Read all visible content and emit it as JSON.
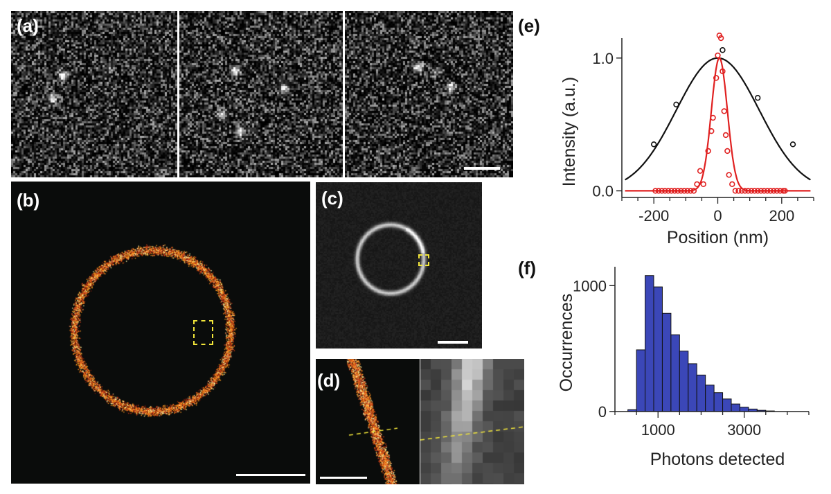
{
  "panels": {
    "a": {
      "label": "(a)",
      "frames": 3
    },
    "b": {
      "label": "(b)"
    },
    "c": {
      "label": "(c)"
    },
    "d": {
      "label": "(d)"
    },
    "e": {
      "label": "(e)"
    },
    "f": {
      "label": "(f)"
    }
  },
  "colors": {
    "black_fit": "#111111",
    "red_fit": "#e02020",
    "histogram_fill": "#3b47b8",
    "roi_box": "#f2e63a",
    "hot_ring": "#ff7a1a"
  },
  "chart_data": [
    {
      "id": "e",
      "type": "scatter",
      "xlabel": "Position (nm)",
      "ylabel": "Intensity (a.u.)",
      "xlim": [
        -300,
        300
      ],
      "ylim": [
        -0.05,
        1.15
      ],
      "xticks": [
        -200,
        0,
        200
      ],
      "xtick_labels": [
        "-200",
        "0",
        "200"
      ],
      "yticks": [
        0.0,
        1.0
      ],
      "ytick_labels": [
        "0.0",
        "1.0"
      ],
      "series": [
        {
          "color": "#111111",
          "points": [
            [
              -200,
              0.35
            ],
            [
              -130,
              0.65
            ],
            [
              15,
              1.06
            ],
            [
              125,
              0.7
            ],
            [
              235,
              0.35
            ]
          ],
          "fit": {
            "kind": "gaussian",
            "center": 0,
            "sigma": 130,
            "amplitude": 1.0
          }
        },
        {
          "color": "#e02020",
          "points": [
            [
              -195,
              0
            ],
            [
              -185,
              0
            ],
            [
              -175,
              0
            ],
            [
              -165,
              0
            ],
            [
              -155,
              0
            ],
            [
              -145,
              0
            ],
            [
              -135,
              0
            ],
            [
              -125,
              0
            ],
            [
              -115,
              0
            ],
            [
              -105,
              0
            ],
            [
              -95,
              0
            ],
            [
              -85,
              0
            ],
            [
              -75,
              0
            ],
            [
              -65,
              0.05
            ],
            [
              -55,
              0.15
            ],
            [
              -45,
              0.05
            ],
            [
              -30,
              0.3
            ],
            [
              -20,
              0.45
            ],
            [
              -15,
              0.55
            ],
            [
              -5,
              0.85
            ],
            [
              0,
              1.02
            ],
            [
              5,
              1.17
            ],
            [
              10,
              1.15
            ],
            [
              15,
              0.9
            ],
            [
              20,
              0.6
            ],
            [
              25,
              0.42
            ],
            [
              30,
              0.3
            ],
            [
              35,
              0.12
            ],
            [
              45,
              0.05
            ],
            [
              55,
              0
            ],
            [
              65,
              0
            ],
            [
              75,
              0
            ],
            [
              85,
              0
            ],
            [
              95,
              0
            ],
            [
              105,
              0
            ],
            [
              115,
              0
            ],
            [
              125,
              0
            ],
            [
              135,
              0
            ],
            [
              145,
              0
            ],
            [
              155,
              0
            ],
            [
              165,
              0
            ],
            [
              175,
              0
            ],
            [
              185,
              0
            ],
            [
              195,
              0
            ],
            [
              205,
              0
            ],
            [
              210,
              0
            ]
          ],
          "fit": {
            "kind": "gaussian",
            "center": 5,
            "sigma": 25,
            "amplitude": 1.0
          }
        }
      ]
    },
    {
      "id": "f",
      "type": "bar",
      "xlabel": "Photons detected",
      "ylabel": "Occurrences",
      "xlim": [
        0,
        4500
      ],
      "ylim": [
        0,
        1150
      ],
      "xticks": [
        1000,
        3000
      ],
      "xtick_labels": [
        "1000",
        "3000"
      ],
      "yticks": [
        0,
        1000
      ],
      "ytick_labels": [
        "0",
        "1000"
      ],
      "bin_width": 200,
      "bins_start": [
        300,
        500,
        700,
        900,
        1100,
        1300,
        1500,
        1700,
        1900,
        2100,
        2300,
        2500,
        2700,
        2900,
        3100,
        3300,
        3500
      ],
      "values": [
        15,
        490,
        1080,
        990,
        780,
        610,
        480,
        380,
        290,
        210,
        150,
        100,
        60,
        35,
        20,
        10,
        5
      ]
    }
  ]
}
